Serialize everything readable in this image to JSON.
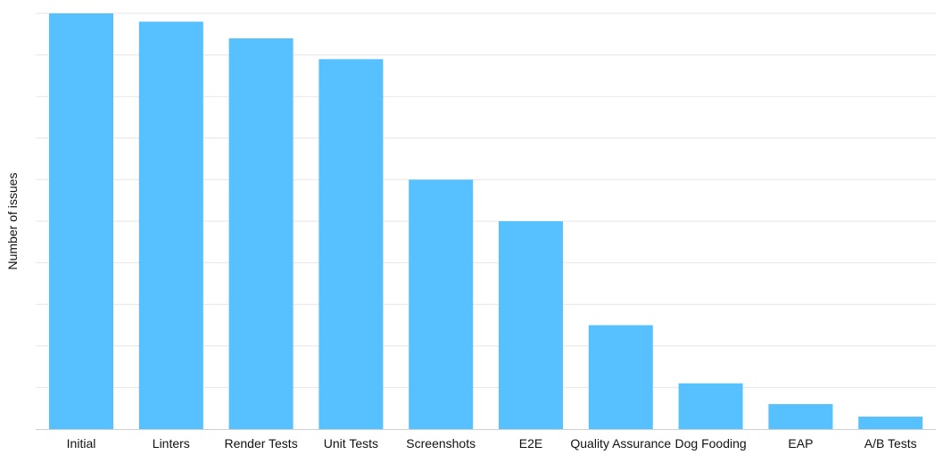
{
  "chart_data": {
    "type": "bar",
    "title": "",
    "xlabel": "",
    "ylabel": "Number of issues",
    "categories": [
      "Initial",
      "Linters",
      "Render Tests",
      "Unit Tests",
      "Screenshots",
      "E2E",
      "Quality Assurance",
      "Dog Fooding",
      "EAP",
      "A/B Tests"
    ],
    "values": [
      100,
      98,
      94,
      89,
      60,
      50,
      25,
      11,
      6,
      3
    ],
    "ylim": [
      0,
      100
    ],
    "grid": true,
    "y_tick_labels_visible": false,
    "legend": "none",
    "colors": {
      "bar": "#57c1ff",
      "grid": "#e6e6e6",
      "axis": "#d0d0d0",
      "text": "#111111"
    }
  }
}
